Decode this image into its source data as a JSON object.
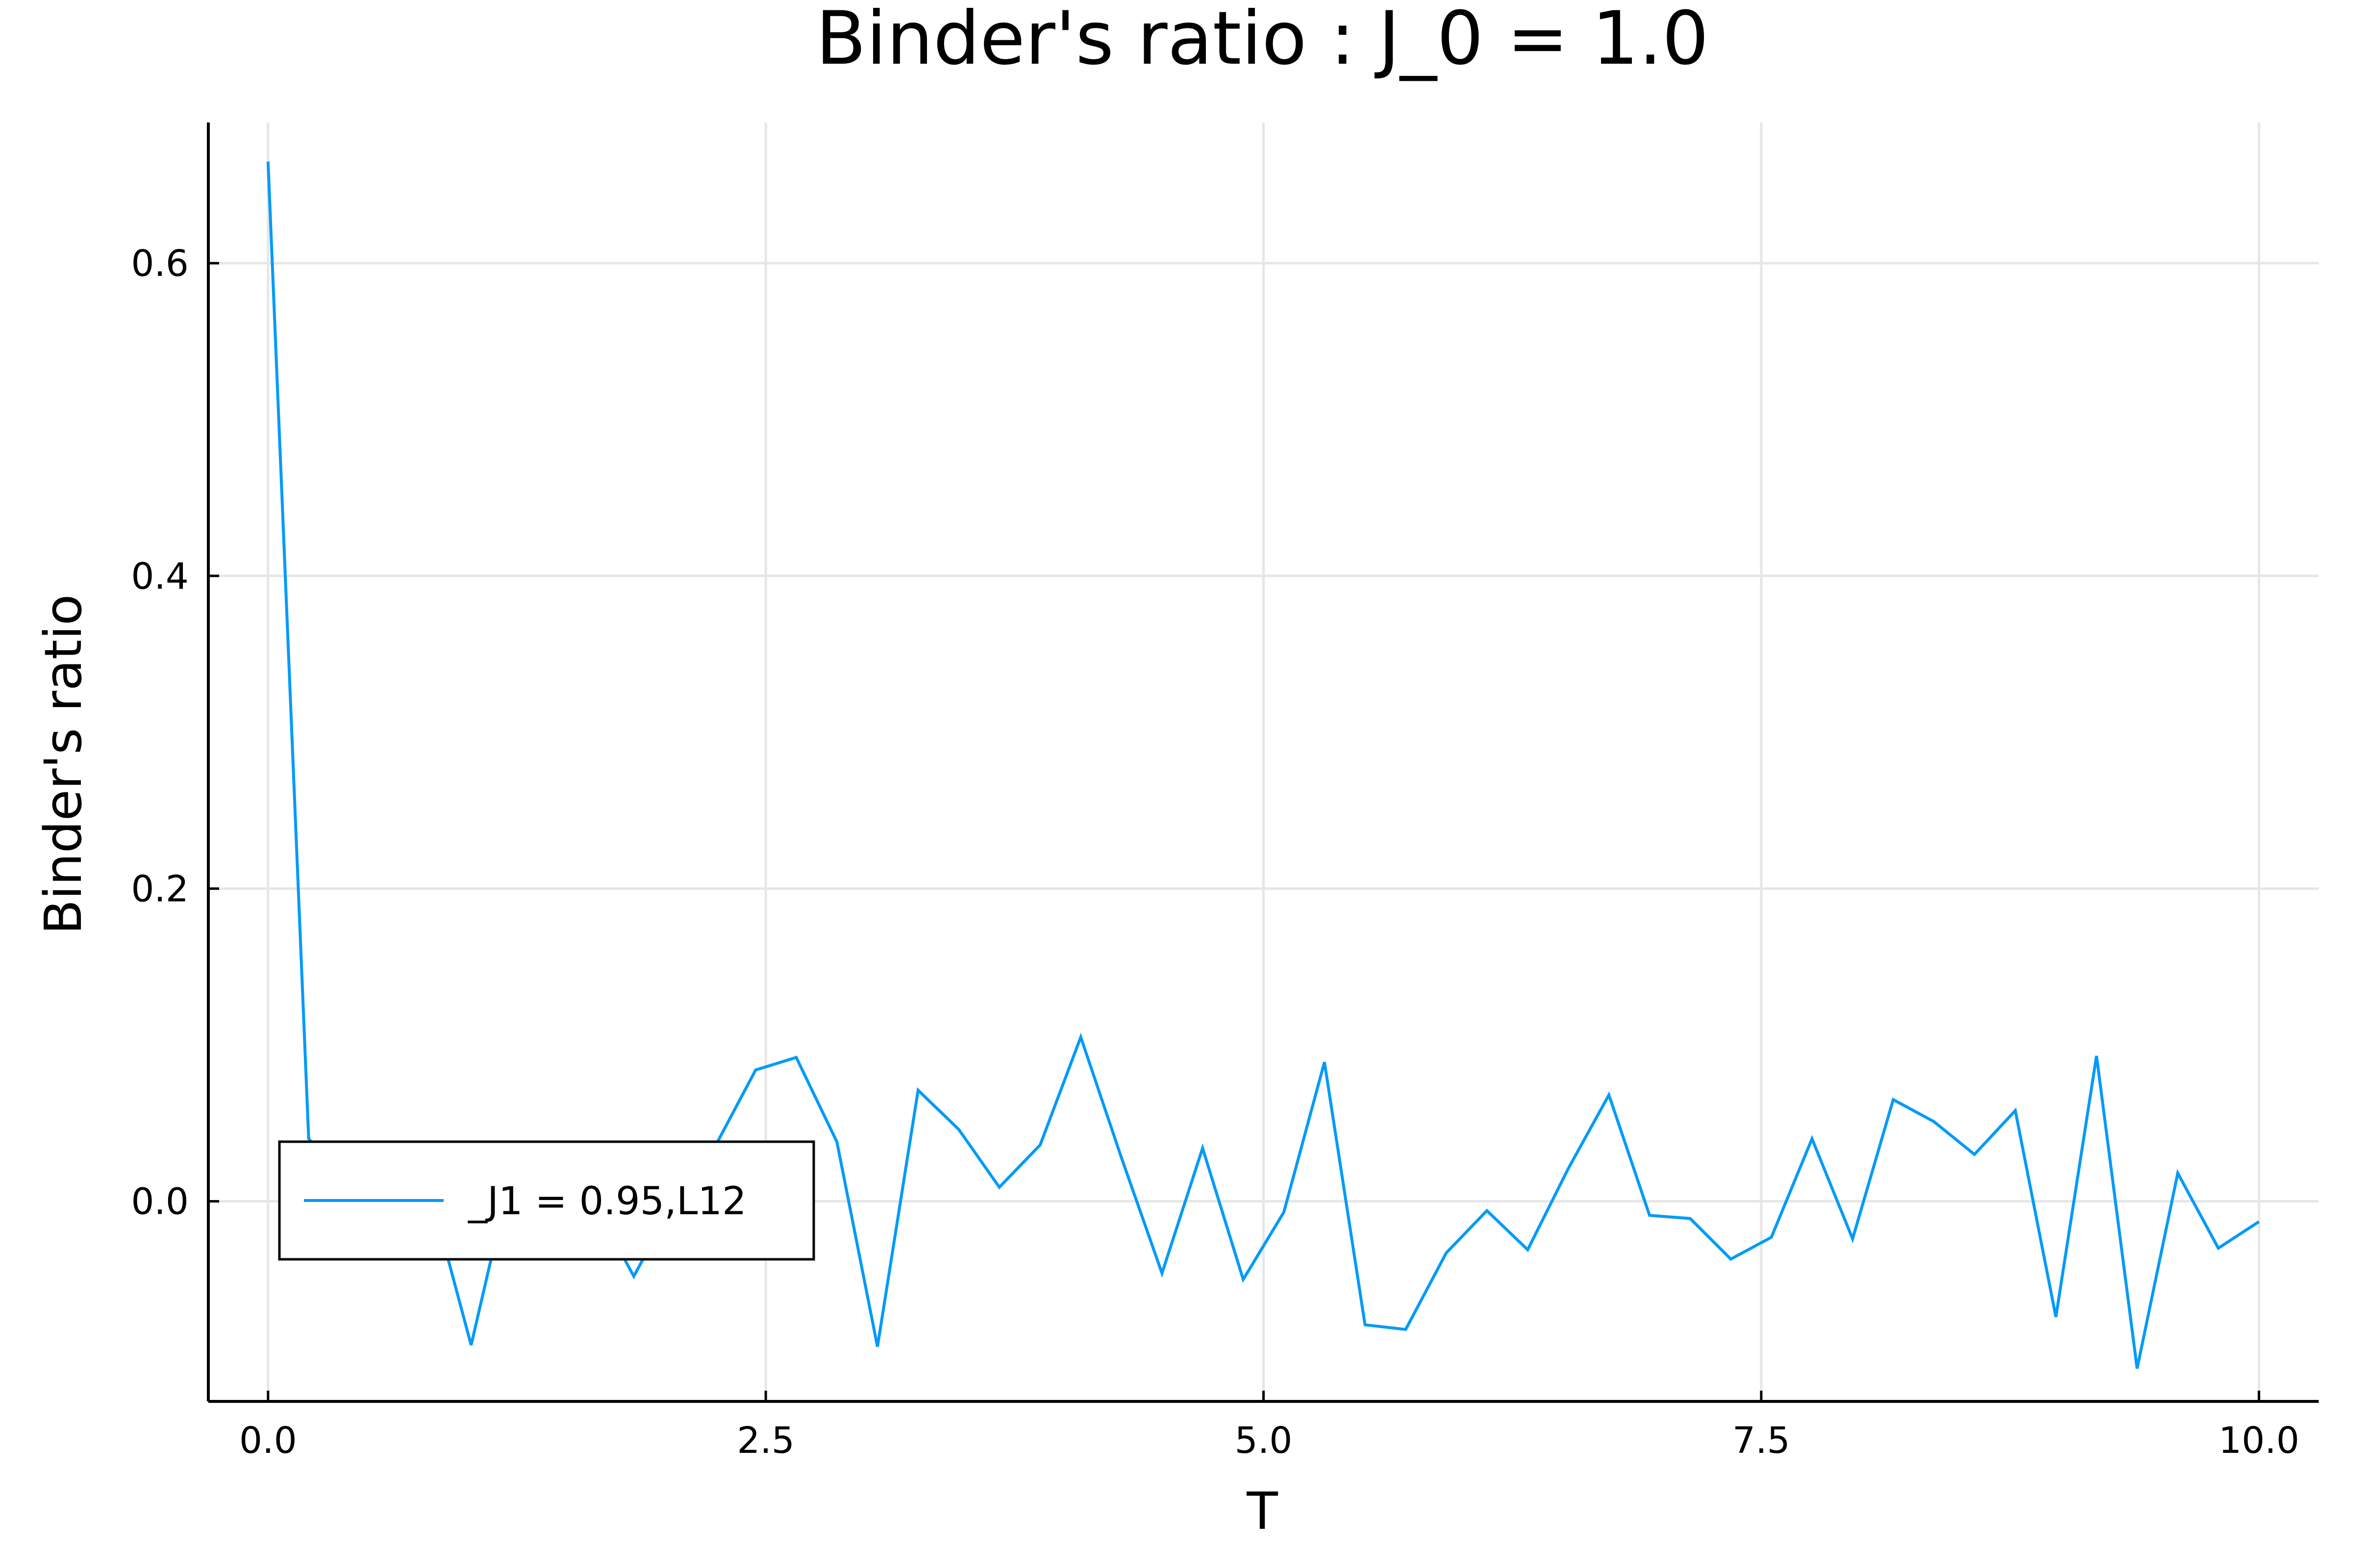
{
  "chart_data": {
    "type": "line",
    "title": "Binder's ratio : J_0 = 1.0",
    "xlabel": "T",
    "ylabel": "Binder's ratio",
    "xlim": [
      -0.3,
      10.3
    ],
    "ylim": [
      -0.128,
      0.69
    ],
    "xticks": [
      0.0,
      2.5,
      5.0,
      7.5,
      10.0
    ],
    "xtick_labels": [
      "0.0",
      "2.5",
      "5.0",
      "7.5",
      "10.0"
    ],
    "yticks": [
      0.0,
      0.2,
      0.4,
      0.6
    ],
    "ytick_labels": [
      "0.0",
      "0.2",
      "0.4",
      "0.6"
    ],
    "grid": true,
    "legend_position": "bottom-left",
    "colors": {
      "series": "#009af9",
      "grid": "#e6e6e6",
      "axis": "#000000"
    },
    "series": [
      {
        "name": "_J1 = 0.95,L12",
        "x": [
          0.0,
          0.204,
          0.408,
          0.612,
          0.816,
          1.02,
          1.224,
          1.429,
          1.633,
          1.837,
          2.041,
          2.245,
          2.449,
          2.653,
          2.857,
          3.061,
          3.265,
          3.469,
          3.673,
          3.878,
          4.082,
          4.286,
          4.49,
          4.694,
          4.898,
          5.102,
          5.306,
          5.51,
          5.714,
          5.918,
          6.122,
          6.327,
          6.531,
          6.735,
          6.939,
          7.143,
          7.347,
          7.551,
          7.755,
          7.959,
          8.163,
          8.367,
          8.571,
          8.776,
          8.98,
          9.184,
          9.388,
          9.592,
          9.796,
          10.0
        ],
        "y": [
          0.665,
          0.04,
          0.01,
          -0.02,
          0.005,
          -0.092,
          0.02,
          -0.025,
          0.0,
          -0.048,
          0.0,
          0.035,
          0.084,
          0.092,
          0.038,
          -0.093,
          0.071,
          0.046,
          0.009,
          0.036,
          0.105,
          0.028,
          -0.046,
          0.034,
          -0.05,
          -0.007,
          0.089,
          -0.079,
          -0.082,
          -0.033,
          -0.006,
          -0.031,
          0.021,
          0.068,
          -0.009,
          -0.011,
          -0.037,
          -0.023,
          0.04,
          -0.024,
          0.065,
          0.051,
          0.03,
          0.058,
          -0.074,
          0.093,
          -0.107,
          0.018,
          -0.03,
          -0.013
        ]
      }
    ]
  }
}
